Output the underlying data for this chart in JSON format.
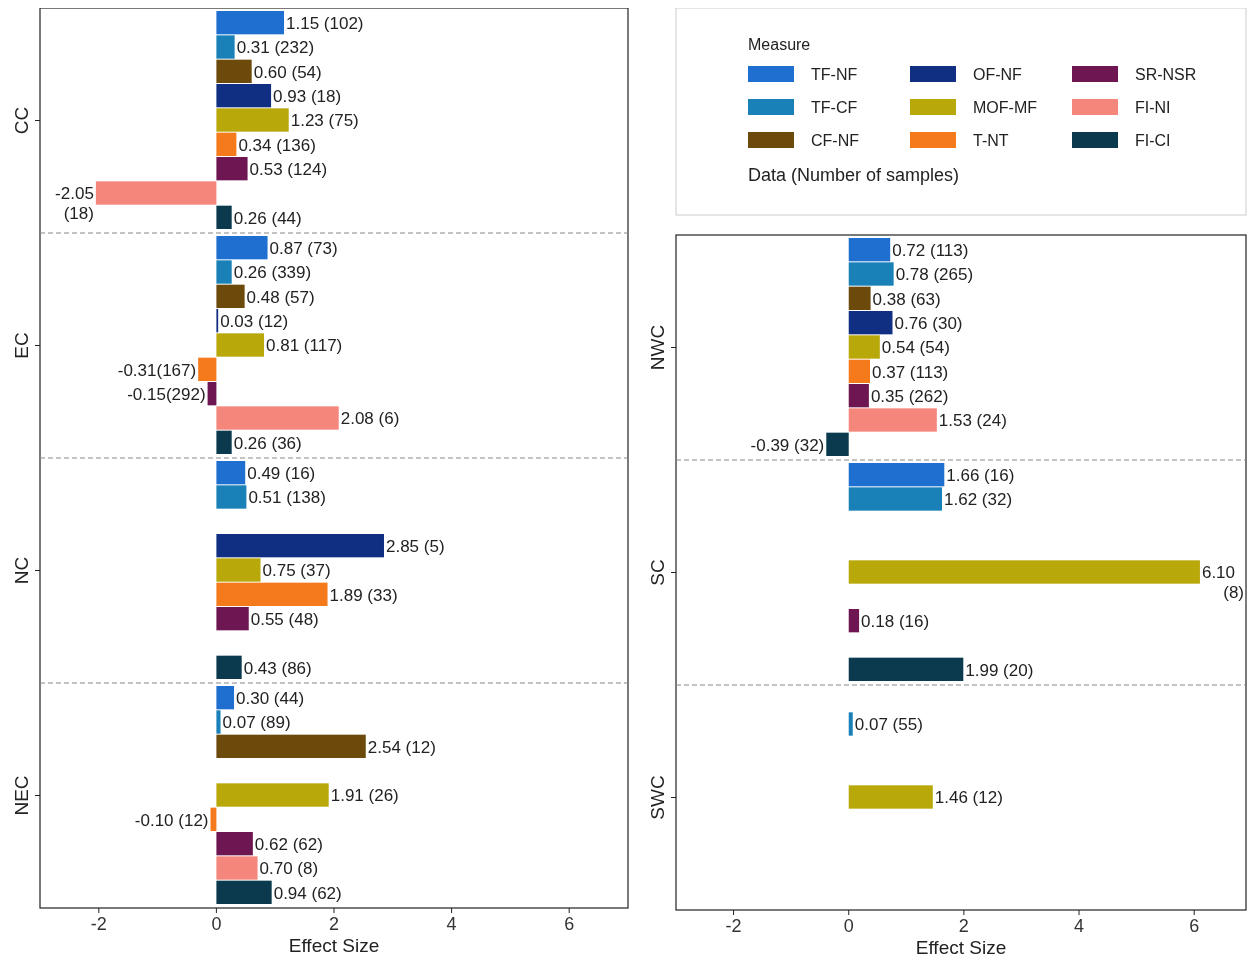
{
  "chart_data": [
    {
      "type": "bar",
      "orientation": "horizontal",
      "categories": [
        "CC",
        "EC",
        "NC",
        "NEC"
      ],
      "xlim": [
        -3,
        7
      ],
      "xticks": [
        -2,
        0,
        2,
        4,
        6
      ],
      "xlabel": "Effect Size",
      "legend": false,
      "series": [
        {
          "color": "#1f6fd1",
          "values": [
            1.15,
            0.87,
            0.49,
            0.3
          ],
          "value_labels": [
            "1.15 (102)",
            "0.87 (73)",
            "0.49 (16)",
            "0.30 (44)"
          ]
        },
        {
          "color": "#1a80b8",
          "values": [
            0.31,
            0.26,
            0.51,
            0.07
          ],
          "value_labels": [
            "0.31 (232)",
            "0.26 (339)",
            "0.51 (138)",
            "0.07 (89)"
          ]
        },
        {
          "color": "#6b4a0c",
          "values": [
            0.6,
            0.48,
            null,
            2.54
          ],
          "value_labels": [
            "0.60 (54)",
            "0.48 (57)",
            null,
            "2.54 (12)"
          ]
        },
        {
          "color": "#102e82",
          "values": [
            0.93,
            0.03,
            2.85,
            null
          ],
          "value_labels": [
            "0.93 (18)",
            "0.03 (12)",
            "2.85 (5)",
            null
          ]
        },
        {
          "color": "#b8a80a",
          "values": [
            1.23,
            0.81,
            0.75,
            1.91
          ],
          "value_labels": [
            "1.23 (75)",
            "0.81 (117)",
            "0.75 (37)",
            "1.91 (26)"
          ]
        },
        {
          "color": "#f57a1c",
          "values": [
            0.34,
            -0.31,
            1.89,
            -0.1
          ],
          "value_labels": [
            "0.34 (136)",
            "-0.31(167)",
            "1.89 (33)",
            "-0.10 (12)"
          ]
        },
        {
          "color": "#6e1651",
          "values": [
            0.53,
            -0.15,
            0.55,
            0.62
          ],
          "value_labels": [
            "0.53 (124)",
            "-0.15(292)",
            "0.55 (48)",
            "0.62 (62)"
          ]
        },
        {
          "color": "#f4867b",
          "values": [
            -2.05,
            2.08,
            null,
            0.7
          ],
          "value_labels": [
            "-2.05 (18)",
            "2.08 (6)",
            null,
            "0.70 (8)"
          ]
        },
        {
          "color": "#0b3a4f",
          "values": [
            0.26,
            0.26,
            0.43,
            0.94
          ],
          "value_labels": [
            "0.26 (44)",
            "0.26 (36)",
            "0.43 (86)",
            "0.94 (62)"
          ]
        }
      ]
    },
    {
      "type": "bar",
      "orientation": "horizontal",
      "categories": [
        "NWC",
        "SC",
        "SWC"
      ],
      "xlim": [
        -3,
        6.9
      ],
      "xticks": [
        -2,
        0,
        2,
        4,
        6
      ],
      "xlabel": "Effect Size",
      "legend": "top",
      "legend_title": "Measure",
      "annotations": [
        "Data (Number of samples)"
      ],
      "series": [
        {
          "name": "TF-NF",
          "color": "#1f6fd1",
          "values": [
            0.72,
            1.66,
            null
          ],
          "value_labels": [
            "0.72 (113)",
            "1.66 (16)",
            null
          ]
        },
        {
          "name": "TF-CF",
          "color": "#1a80b8",
          "values": [
            0.78,
            1.62,
            0.07
          ],
          "value_labels": [
            "0.78 (265)",
            "1.62 (32)",
            "0.07 (55)"
          ]
        },
        {
          "name": "CF-NF",
          "color": "#6b4a0c",
          "values": [
            0.38,
            null,
            null
          ],
          "value_labels": [
            "0.38 (63)",
            null,
            null
          ]
        },
        {
          "name": "OF-NF",
          "color": "#102e82",
          "values": [
            0.76,
            null,
            null
          ],
          "value_labels": [
            "0.76 (30)",
            null,
            null
          ]
        },
        {
          "name": "MOF-MF",
          "color": "#b8a80a",
          "values": [
            0.54,
            6.1,
            1.46
          ],
          "value_labels": [
            "0.54 (54)",
            "6.10 (8)",
            "1.46 (12)"
          ]
        },
        {
          "name": "T-NT",
          "color": "#f57a1c",
          "values": [
            0.37,
            null,
            null
          ],
          "value_labels": [
            "0.37 (113)",
            null,
            null
          ]
        },
        {
          "name": "SR-NSR",
          "color": "#6e1651",
          "values": [
            0.35,
            0.18,
            null
          ],
          "value_labels": [
            "0.35 (262)",
            "0.18 (16)",
            null
          ]
        },
        {
          "name": "FI-NI",
          "color": "#f4867b",
          "values": [
            1.53,
            null,
            null
          ],
          "value_labels": [
            "1.53 (24)",
            null,
            null
          ]
        },
        {
          "name": "FI-CI",
          "color": "#0b3a4f",
          "values": [
            -0.39,
            1.99,
            null
          ],
          "value_labels": [
            "-0.39 (32)",
            "1.99 (20)",
            null
          ]
        }
      ]
    }
  ]
}
